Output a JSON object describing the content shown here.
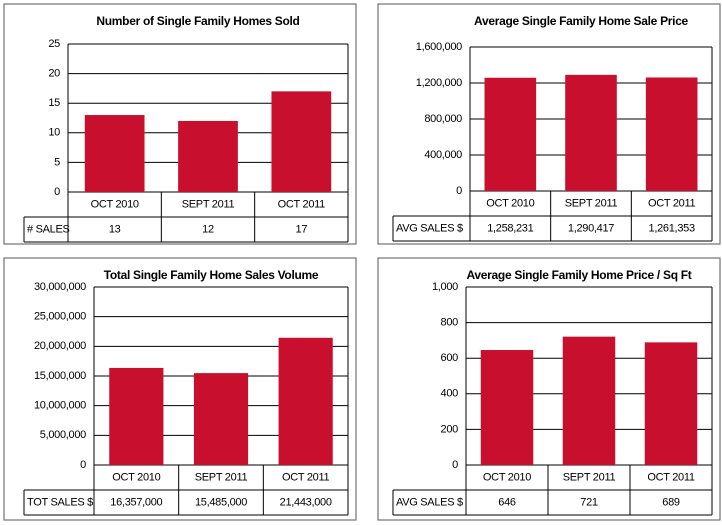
{
  "chart_data": [
    {
      "type": "bar",
      "title": "Number of Single Family Homes Sold",
      "color": "#c8102e",
      "grid": true,
      "categories": [
        "OCT 2010",
        "SEPT 2011",
        "OCT 2011"
      ],
      "values": [
        13,
        12,
        17
      ],
      "row_label": "# SALES",
      "ylim": [
        0,
        25
      ],
      "yticks": [
        0,
        5,
        10,
        15,
        20,
        25
      ]
    },
    {
      "type": "bar",
      "title": "Average Single Family Home Sale Price",
      "color": "#c8102e",
      "grid": true,
      "categories": [
        "OCT 2010",
        "SEPT 2011",
        "OCT 2011"
      ],
      "values": [
        1258231,
        1290417,
        1261353
      ],
      "value_labels": [
        "1,258,231",
        "1,290,417",
        "1,261,353"
      ],
      "row_label": "AVG SALES $",
      "ylim": [
        0,
        1600000
      ],
      "yticks": [
        0,
        {
          "value": 400000,
          "label": "400,000"
        },
        {
          "value": 800000,
          "label": "800,000"
        },
        {
          "value": 1200000,
          "label": "1,200,000"
        },
        {
          "value": 1600000,
          "label": "1,600,000"
        }
      ]
    },
    {
      "type": "bar",
      "title": "Total Single Family Home Sales Volume",
      "color": "#c8102e",
      "grid": true,
      "categories": [
        "OCT 2010",
        "SEPT 2011",
        "OCT 2011"
      ],
      "values": [
        16357000,
        15485000,
        21443000
      ],
      "value_labels": [
        "16,357,000",
        "15,485,000",
        "21,443,000"
      ],
      "row_label": "TOT SALES $",
      "ylim": [
        0,
        30000000
      ],
      "yticks": [
        0,
        {
          "value": 5000000,
          "label": "5,000,000"
        },
        {
          "value": 10000000,
          "label": "10,000,000"
        },
        {
          "value": 15000000,
          "label": "15,000,000"
        },
        {
          "value": 20000000,
          "label": "20,000,000"
        },
        {
          "value": 25000000,
          "label": "25,000,000"
        },
        {
          "value": 30000000,
          "label": "30,000,000"
        }
      ]
    },
    {
      "type": "bar",
      "title": "Average Single Family Home Price / Sq Ft",
      "color": "#c8102e",
      "grid": true,
      "categories": [
        "OCT 2010",
        "SEPT 2011",
        "OCT 2011"
      ],
      "values": [
        646,
        721,
        689
      ],
      "row_label": "AVG SALES $",
      "ylim": [
        0,
        1000
      ],
      "yticks": [
        0,
        200,
        400,
        600,
        800,
        {
          "value": 1000,
          "label": "1,000"
        }
      ]
    }
  ]
}
